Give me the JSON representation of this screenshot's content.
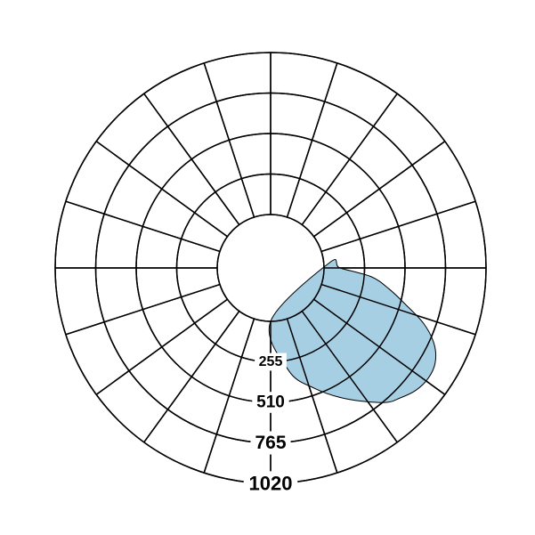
{
  "chart_data": {
    "type": "polar-area",
    "radial_ticks": [
      "255",
      "510",
      "765",
      "1020"
    ],
    "radial_range": [
      0,
      1020
    ],
    "angular_divisions": 20,
    "grid": true,
    "colors": {
      "fill": "#a6cfe4",
      "grid": "#000000",
      "background": "#ffffff"
    },
    "series": [
      {
        "points": [
          {
            "angle": 0,
            "r": 0
          },
          {
            "angle": 10,
            "r": 320
          },
          {
            "angle": 20,
            "r": 470
          },
          {
            "angle": 30,
            "r": 615
          },
          {
            "angle": 40,
            "r": 770
          },
          {
            "angle": 45,
            "r": 820
          },
          {
            "angle": 50,
            "r": 860
          },
          {
            "angle": 55,
            "r": 875
          },
          {
            "angle": 60,
            "r": 860
          },
          {
            "angle": 65,
            "r": 800
          },
          {
            "angle": 70,
            "r": 690
          },
          {
            "angle": 75,
            "r": 540
          },
          {
            "angle": 80,
            "r": 420
          },
          {
            "angle": 85,
            "r": 300
          },
          {
            "angle": 90,
            "r": 100
          },
          {
            "angle": 95,
            "r": 35
          }
        ]
      }
    ]
  }
}
